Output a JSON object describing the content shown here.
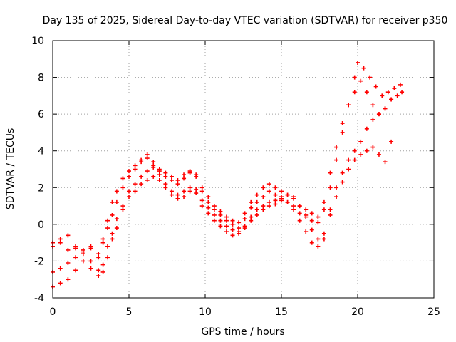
{
  "chart_data": {
    "type": "scatter",
    "title": "Day 135 of 2025, Sidereal Day-to-day VTEC variation (SDTVAR) for receiver p350",
    "xlabel": "GPS time / hours",
    "ylabel": "SDTVAR / TECUs",
    "xlim": [
      0,
      25
    ],
    "ylim": [
      -4,
      10
    ],
    "x_ticks": [
      0,
      5,
      10,
      15,
      20,
      25
    ],
    "y_ticks": [
      -4,
      -2,
      0,
      2,
      4,
      6,
      8,
      10
    ],
    "grid": true,
    "marker": "+",
    "colors": {
      "series": "#ff0000",
      "grid": "#a0a0a0",
      "axis": "#000000"
    },
    "series": [
      {
        "x": [
          0.0,
          0.5,
          1.0,
          1.5,
          2.0,
          2.5,
          3.0,
          3.3,
          3.6,
          3.9,
          4.2,
          4.6,
          5.0,
          5.4,
          5.8,
          6.2,
          6.6,
          7.0,
          7.4,
          7.8,
          8.2,
          8.6,
          9.0,
          9.4,
          9.8,
          10.2,
          10.6,
          11.0,
          11.4,
          11.8,
          12.2,
          12.6,
          13.0,
          13.4,
          13.8,
          14.2,
          14.6,
          15.0,
          15.4,
          15.8,
          16.2,
          16.6,
          17.0,
          17.4,
          17.8,
          18.2,
          18.6,
          19.0,
          19.4,
          19.8,
          20.0,
          20.4,
          20.8,
          21.2,
          21.6,
          22.0,
          22.4,
          22.8
        ],
        "y": [
          -1.0,
          -0.8,
          -0.6,
          -1.2,
          -1.5,
          -1.3,
          -1.8,
          -1.0,
          -0.2,
          0.5,
          1.2,
          2.0,
          2.6,
          3.0,
          3.4,
          3.6,
          3.2,
          2.9,
          2.6,
          2.4,
          2.2,
          2.5,
          2.8,
          2.7,
          1.8,
          1.2,
          0.8,
          0.5,
          0.2,
          0.0,
          -0.2,
          0.3,
          0.9,
          1.2,
          1.5,
          1.8,
          1.6,
          1.4,
          1.2,
          1.0,
          0.6,
          0.4,
          0.2,
          0.1,
          0.8,
          2.0,
          3.5,
          5.0,
          6.5,
          8.0,
          8.8,
          8.5,
          8.0,
          7.5,
          7.0,
          7.2,
          7.4,
          7.6
        ]
      },
      {
        "x": [
          0.0,
          0.5,
          1.0,
          1.5,
          2.0,
          2.5,
          3.0,
          3.3,
          3.6,
          3.9,
          4.2,
          4.6,
          5.0,
          5.4,
          5.8,
          6.2,
          6.6,
          7.0,
          7.4,
          7.8,
          8.2,
          8.6,
          9.0,
          9.4,
          9.8,
          10.2,
          10.6,
          11.0,
          11.4,
          11.8,
          12.2,
          12.6,
          13.0,
          13.4,
          13.8,
          14.2,
          14.6,
          15.0,
          15.4,
          15.8,
          16.2,
          16.6,
          17.0,
          17.4,
          17.8,
          18.2,
          18.6,
          19.0,
          19.4,
          19.8,
          20.2,
          20.6,
          21.0,
          21.4,
          21.8,
          22.2
        ],
        "y": [
          -2.6,
          -2.4,
          -2.1,
          -1.8,
          -1.6,
          -2.0,
          -2.5,
          -2.2,
          -1.2,
          -0.5,
          0.3,
          1.0,
          1.8,
          2.2,
          2.6,
          2.9,
          3.1,
          2.7,
          2.2,
          1.8,
          1.6,
          1.8,
          2.0,
          1.9,
          1.3,
          0.9,
          0.5,
          0.2,
          -0.1,
          -0.3,
          -0.4,
          -0.1,
          0.4,
          0.8,
          1.0,
          1.2,
          1.3,
          1.5,
          1.6,
          1.5,
          1.0,
          0.5,
          -0.3,
          -0.8,
          -0.5,
          0.8,
          2.0,
          2.8,
          3.5,
          4.0,
          4.5,
          5.2,
          5.7,
          6.0,
          6.3,
          6.8
        ]
      },
      {
        "x": [
          0.0,
          0.5,
          1.0,
          1.5,
          2.0,
          2.5,
          3.0,
          3.3,
          3.6,
          3.9,
          4.2,
          4.6,
          5.0,
          5.4,
          5.8,
          6.2,
          6.6,
          7.0,
          7.4,
          7.8,
          8.2,
          8.6,
          9.0,
          9.4,
          9.8,
          10.2,
          10.6,
          11.0,
          11.4,
          11.8,
          12.2,
          12.6,
          13.0,
          13.4,
          13.8,
          14.2,
          14.6,
          15.0,
          15.4,
          15.8,
          16.2,
          16.6,
          17.0,
          17.4,
          17.8,
          18.2,
          18.6,
          19.0,
          19.4,
          19.8,
          20.2,
          20.6,
          21.0,
          21.4,
          21.8,
          22.2
        ],
        "y": [
          -3.4,
          -3.2,
          -3.0,
          -2.5,
          -2.0,
          -2.4,
          -2.8,
          -2.6,
          -1.8,
          -0.8,
          -0.2,
          0.8,
          1.5,
          1.8,
          2.2,
          2.4,
          2.6,
          2.4,
          2.0,
          1.6,
          1.4,
          1.5,
          1.8,
          1.7,
          1.0,
          0.6,
          0.2,
          -0.1,
          -0.4,
          -0.6,
          -0.5,
          -0.2,
          0.2,
          0.5,
          0.8,
          1.0,
          1.1,
          1.3,
          1.2,
          0.8,
          0.2,
          -0.4,
          -1.0,
          -1.2,
          -0.8,
          0.5,
          1.5,
          2.3,
          3.0,
          3.5,
          3.8,
          4.0,
          4.2,
          3.8,
          3.4,
          4.5
        ]
      },
      {
        "x": [
          0.0,
          0.5,
          1.0,
          1.5,
          2.0,
          2.5,
          3.0,
          3.3,
          3.6,
          3.9,
          4.2,
          4.6,
          5.0,
          5.4,
          5.8,
          6.2,
          6.6,
          7.0,
          7.4,
          7.8,
          8.2,
          8.6,
          9.0,
          9.4,
          9.8,
          10.2,
          10.6,
          11.0,
          11.4,
          11.8,
          12.2,
          12.6,
          13.0,
          13.4,
          13.8,
          14.2,
          14.6,
          15.0,
          15.4,
          15.8,
          16.2,
          16.6,
          17.0,
          17.4,
          17.8,
          18.2,
          18.6,
          19.0,
          19.4,
          19.8,
          20.2,
          20.6,
          21.0,
          21.4,
          21.8,
          22.2,
          22.6,
          22.9
        ],
        "y": [
          -1.2,
          -1.0,
          -1.4,
          -1.3,
          -1.4,
          -1.2,
          -1.6,
          -0.8,
          0.2,
          1.2,
          1.8,
          2.5,
          2.9,
          3.2,
          3.5,
          3.8,
          3.4,
          3.0,
          2.8,
          2.6,
          2.4,
          2.7,
          2.9,
          2.6,
          2.0,
          1.5,
          1.0,
          0.7,
          0.4,
          0.2,
          0.1,
          0.6,
          1.2,
          1.6,
          2.0,
          2.2,
          2.0,
          1.8,
          1.6,
          1.4,
          1.0,
          0.8,
          0.6,
          0.4,
          1.2,
          2.8,
          4.2,
          5.5,
          6.5,
          7.2,
          7.8,
          7.2,
          6.5,
          6.0,
          6.3,
          6.8,
          7.0,
          7.2
        ]
      }
    ]
  }
}
